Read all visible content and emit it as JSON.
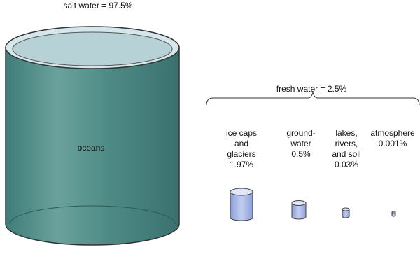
{
  "salt": {
    "label": "salt water = 97.5%",
    "oceans": "oceans"
  },
  "fresh": {
    "label": "fresh water = 2.5%"
  },
  "items": [
    {
      "label": "ice caps\nand\nglaciers\n1.97%"
    },
    {
      "label": "ground-\nwater\n0.5%"
    },
    {
      "label": "lakes,\nrivers,\nand soil\n0.03%"
    },
    {
      "label": "atmosphere\n0.001%"
    }
  ],
  "colors": {
    "ocean": "#4f8a86",
    "fresh": "#a9b7e6"
  }
}
